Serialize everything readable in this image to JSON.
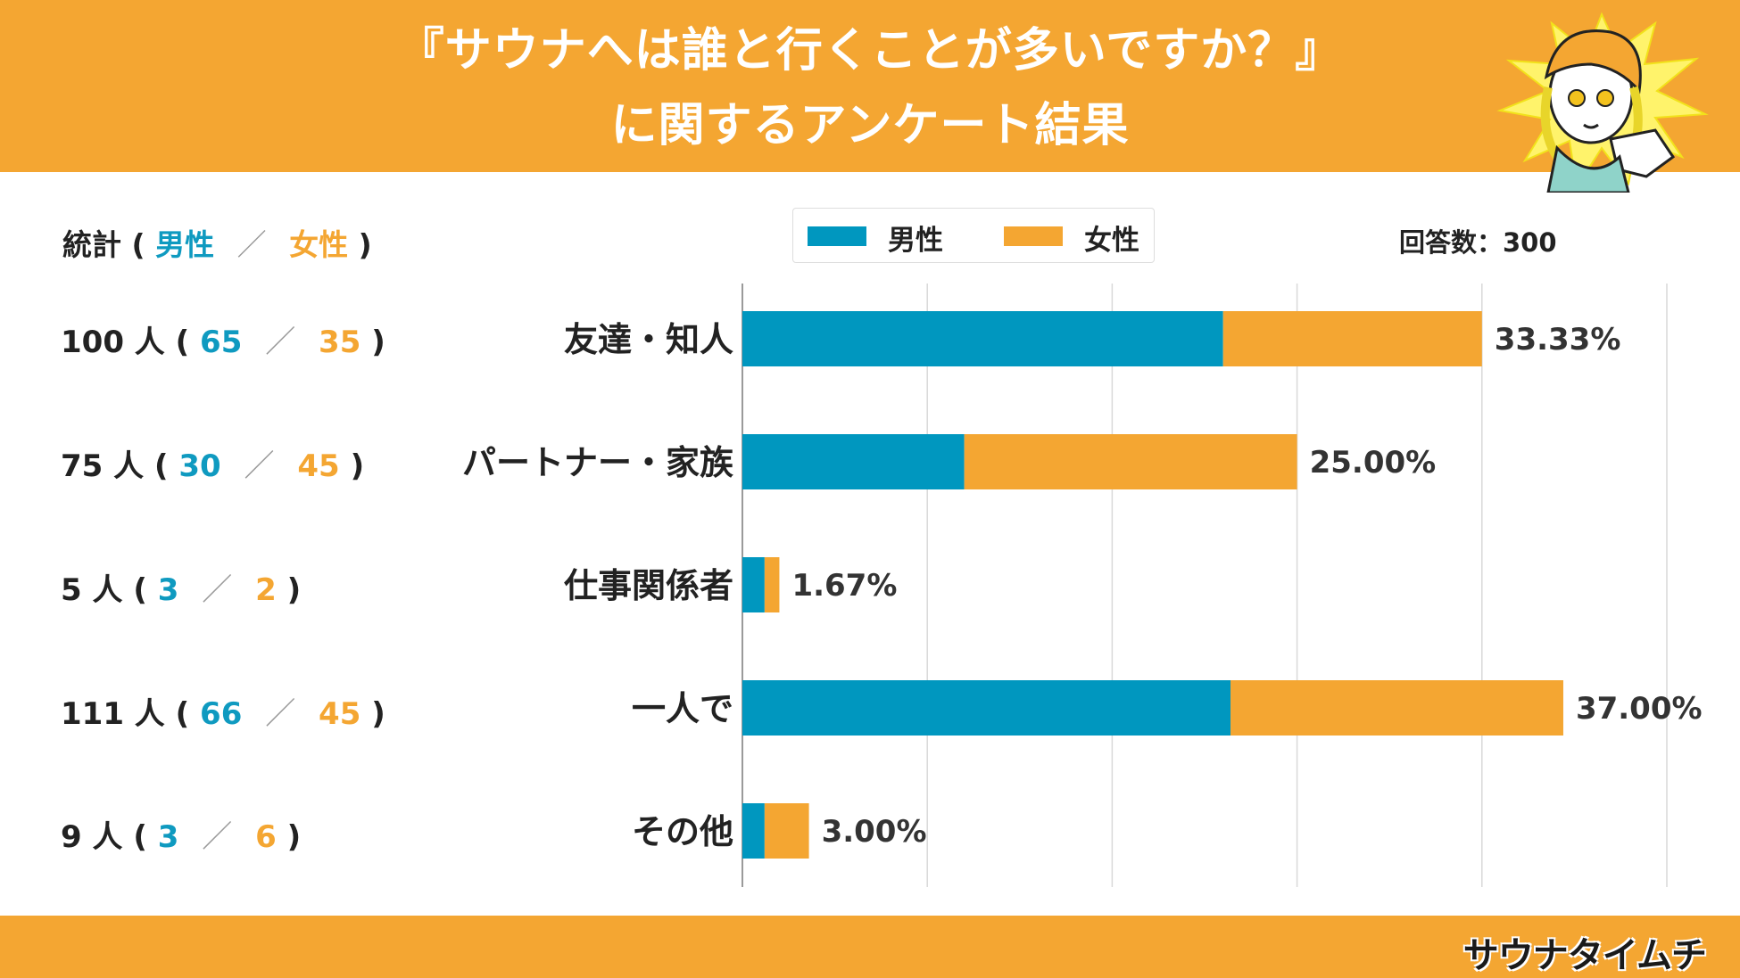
{
  "title": {
    "line1": "『サウナへは誰と行くことが多いですか？』",
    "line2": "に関するアンケート結果"
  },
  "stats": {
    "heading_prefix": "統計 (",
    "heading_male": "男性",
    "heading_sep": "／",
    "heading_female": "女性",
    "heading_suffix": ")",
    "rows": [
      {
        "total": "100 人 (",
        "male": "65",
        "sep": "／",
        "female": "35",
        "close": ")"
      },
      {
        "total": "75 人 (",
        "male": "30",
        "sep": "／",
        "female": "45",
        "close": ")"
      },
      {
        "total": "5 人 (",
        "male": "3",
        "sep": "／",
        "female": "2",
        "close": ")"
      },
      {
        "total": "111 人 (",
        "male": "66",
        "sep": "／",
        "female": "45",
        "close": ")"
      },
      {
        "total": "9 人 (",
        "male": "3",
        "sep": "／",
        "female": "6",
        "close": ")"
      }
    ]
  },
  "legend": {
    "male": "男性",
    "female": "女性"
  },
  "respondents": "回答数：300",
  "footer_logo": "サウナタイムチ",
  "colors": {
    "male": "#0097bf",
    "female": "#f4a632",
    "header": "#f4a632"
  },
  "chart_data": {
    "type": "bar",
    "orientation": "horizontal",
    "stacked": true,
    "categories": [
      "友達・知人",
      "パートナー・家族",
      "仕事関係者",
      "一人で",
      "その他"
    ],
    "series": [
      {
        "name": "男性",
        "values": [
          65,
          30,
          3,
          66,
          3
        ]
      },
      {
        "name": "女性",
        "values": [
          35,
          45,
          2,
          45,
          6
        ]
      }
    ],
    "data_labels": [
      "33.33%",
      "25.00%",
      "1.67%",
      "37.00%",
      "3.00%"
    ],
    "xlim": [
      0,
      125
    ],
    "grid": true,
    "legend_position": "top"
  }
}
